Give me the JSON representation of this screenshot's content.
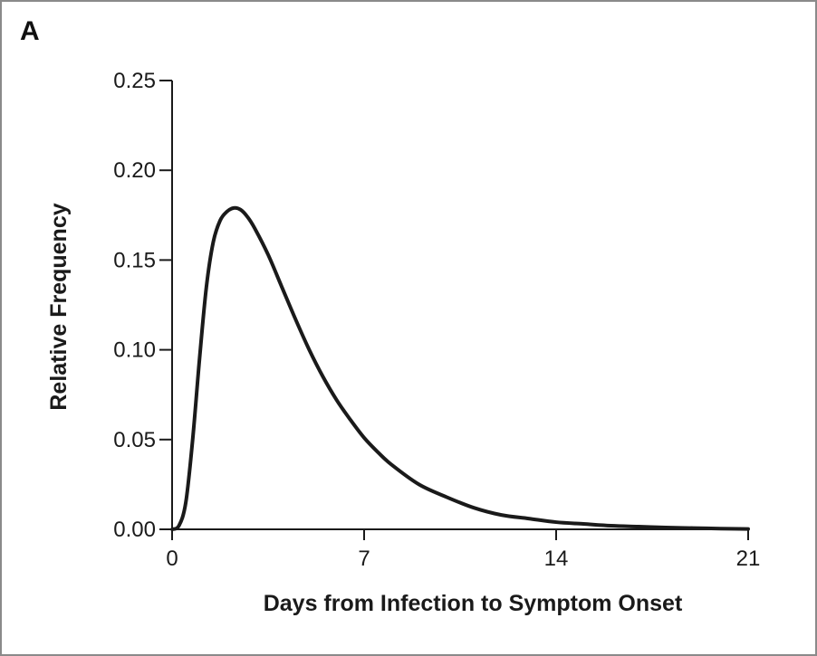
{
  "panel_label": "A",
  "chart_data": {
    "type": "line",
    "title": "",
    "xlabel": "Days from Infection to Symptom Onset",
    "ylabel": "Relative Frequency",
    "xlim": [
      0,
      21
    ],
    "ylim": [
      0,
      0.25
    ],
    "x_ticks": [
      0,
      7,
      14,
      21
    ],
    "x_tick_labels": [
      "0",
      "7",
      "14",
      "21"
    ],
    "y_ticks": [
      0,
      0.05,
      0.1,
      0.15,
      0.2,
      0.25
    ],
    "y_tick_labels": [
      "0.00",
      "0.05",
      "0.10",
      "0.15",
      "0.20",
      "0.25"
    ],
    "grid": false,
    "line_color": "#1a1a1a",
    "series": [
      {
        "x": [
          0,
          0.25,
          0.5,
          0.75,
          1.0,
          1.25,
          1.5,
          1.75,
          2.0,
          2.25,
          2.5,
          2.75,
          3.0,
          3.5,
          4.0,
          4.5,
          5.0,
          5.5,
          6.0,
          6.5,
          7.0,
          7.5,
          8.0,
          9.0,
          10.0,
          11.0,
          12.0,
          13.0,
          14.0,
          15.0,
          16.0,
          17.0,
          18.0,
          19.0,
          20.0,
          21.0
        ],
        "y": [
          0.0,
          0.002,
          0.015,
          0.05,
          0.095,
          0.135,
          0.16,
          0.172,
          0.177,
          0.179,
          0.178,
          0.174,
          0.168,
          0.153,
          0.135,
          0.117,
          0.1,
          0.085,
          0.072,
          0.061,
          0.051,
          0.043,
          0.036,
          0.025,
          0.018,
          0.012,
          0.008,
          0.006,
          0.004,
          0.003,
          0.002,
          0.0015,
          0.001,
          0.0007,
          0.0004,
          0.0002
        ]
      }
    ]
  }
}
